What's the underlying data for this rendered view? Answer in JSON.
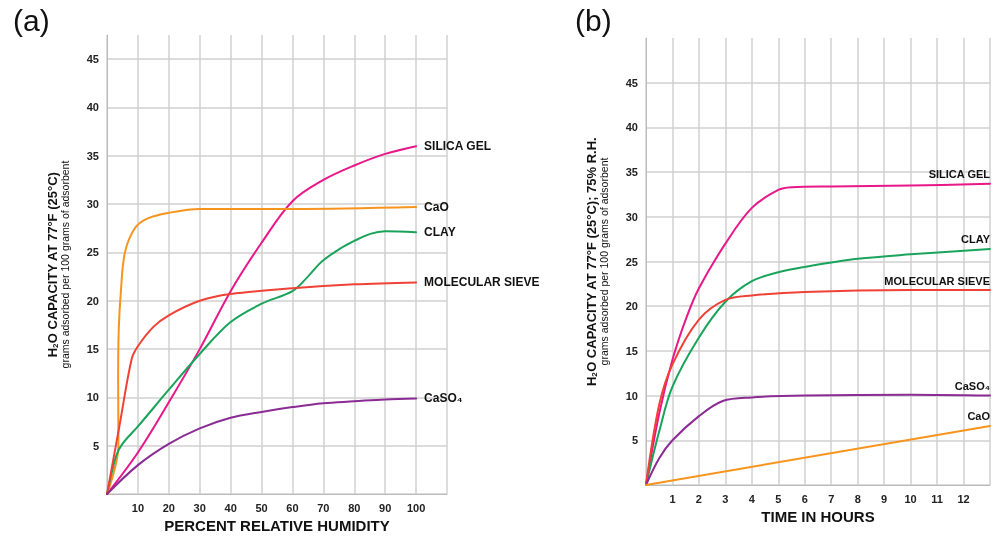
{
  "chart_data": [
    {
      "type": "line",
      "title": "(a)",
      "xlabel": "PERCENT RELATIVE HUMIDITY",
      "ylabel": "H$_{2}$O CAPACITY AT 77°F (25°C)\ngrams adsorbed per 100 grams of adsorbent",
      "xlim": [
        0,
        110
      ],
      "ylim": [
        0,
        47.5
      ],
      "xticks": [
        {
          "value": 0,
          "label": null
        },
        10,
        20,
        30,
        40,
        50,
        60,
        70,
        80,
        90,
        100,
        {
          "value": 110,
          "label": null
        }
      ],
      "yticks": [
        {
          "value": 0,
          "label": null
        },
        5,
        10,
        15,
        20,
        25,
        30,
        35,
        40,
        45
      ],
      "grid": true,
      "marker": "none",
      "series": [
        {
          "name": "SILICA GEL",
          "color": "#e8178a",
          "x": [
            0,
            10,
            20,
            30,
            40,
            50,
            60,
            70,
            80,
            90,
            100
          ],
          "values": [
            0,
            4.3,
            9.5,
            15,
            21,
            26,
            30.3,
            32.5,
            34,
            35.2,
            36
          ]
        },
        {
          "name": "CaO",
          "color": "#f7941d",
          "x": [
            0,
            3.7,
            3.6,
            3.8,
            4.5,
            5.8,
            9,
            13,
            20,
            30,
            60,
            100
          ],
          "values": [
            0,
            5,
            12,
            17,
            21,
            25,
            27.5,
            28.5,
            29.1,
            29.5,
            29.5,
            29.7
          ]
        },
        {
          "name": "CLAY",
          "color": "#1aa35a",
          "x": [
            0,
            3,
            5,
            10,
            20,
            30,
            40,
            50,
            60,
            65,
            70,
            80,
            90,
            100
          ],
          "values": [
            0,
            4,
            5.2,
            7,
            10.8,
            14.5,
            17.8,
            19.7,
            21,
            22.5,
            24.2,
            26.2,
            27.2,
            27.1
          ]
        },
        {
          "name": "MOLECULAR SIEVE",
          "color": "#ef4135",
          "x": [
            0,
            4,
            8,
            10,
            15,
            20,
            30,
            40,
            60,
            80,
            100
          ],
          "values": [
            0,
            7,
            14,
            15.3,
            17.3,
            18.5,
            20,
            20.7,
            21.3,
            21.7,
            21.9
          ]
        },
        {
          "name": "CaSO₄",
          "color": "#8b2b94",
          "x": [
            0,
            10,
            20,
            30,
            40,
            50,
            60,
            70,
            80,
            90,
            100
          ],
          "values": [
            0,
            3,
            5.2,
            6.8,
            7.9,
            8.5,
            9,
            9.4,
            9.6,
            9.8,
            9.9
          ]
        }
      ]
    },
    {
      "type": "line",
      "title": "(b)",
      "xlabel": "TIME IN HOURS",
      "ylabel": "H$_{2}$O CAPACITY AT 77°F (25°C); 75% R.H.\ngrams adsorbed per 100 grams of adsorbent",
      "xlim": [
        0,
        13
      ],
      "ylim": [
        0,
        50
      ],
      "xticks": [
        {
          "value": 0,
          "label": null
        },
        1,
        2,
        3,
        4,
        5,
        6,
        7,
        8,
        9,
        10,
        11,
        12,
        {
          "value": 13,
          "label": null
        }
      ],
      "yticks": [
        {
          "value": 0,
          "label": null
        },
        5,
        10,
        15,
        20,
        25,
        30,
        35,
        40,
        45
      ],
      "grid": true,
      "marker": "none",
      "series": [
        {
          "name": "SILICA GEL",
          "color": "#e8178a",
          "x": [
            0,
            0.5,
            1,
            1.5,
            2,
            3,
            4,
            5,
            5.5,
            7,
            10,
            13
          ],
          "values": [
            0,
            8,
            14,
            18.5,
            22,
            27,
            31,
            33,
            33.3,
            33.4,
            33.5,
            33.7
          ]
        },
        {
          "name": "CLAY",
          "color": "#1aa35a",
          "x": [
            0,
            0.5,
            1,
            2,
            3,
            4,
            5,
            6,
            8,
            10,
            13
          ],
          "values": [
            0,
            6,
            11,
            16.5,
            20.5,
            22.8,
            23.8,
            24.4,
            25.3,
            25.8,
            26.4
          ]
        },
        {
          "name": "MOLECULAR SIEVE",
          "color": "#ef4135",
          "x": [
            0,
            0.5,
            1,
            2,
            3,
            4,
            6,
            10,
            13
          ],
          "values": [
            0,
            9,
            13.5,
            18.5,
            20.7,
            21.2,
            21.6,
            21.8,
            21.8
          ]
        },
        {
          "name": "CaSO₄",
          "color": "#8b2b94",
          "x": [
            0,
            0.5,
            1,
            2,
            2.9,
            4,
            6,
            10,
            13
          ],
          "values": [
            0,
            3,
            5,
            7.7,
            9.4,
            9.8,
            10,
            10.1,
            10
          ]
        },
        {
          "name": "CaO",
          "color": "#f7941d",
          "x": [
            0,
            13
          ],
          "values": [
            0,
            6.6
          ]
        }
      ]
    }
  ]
}
